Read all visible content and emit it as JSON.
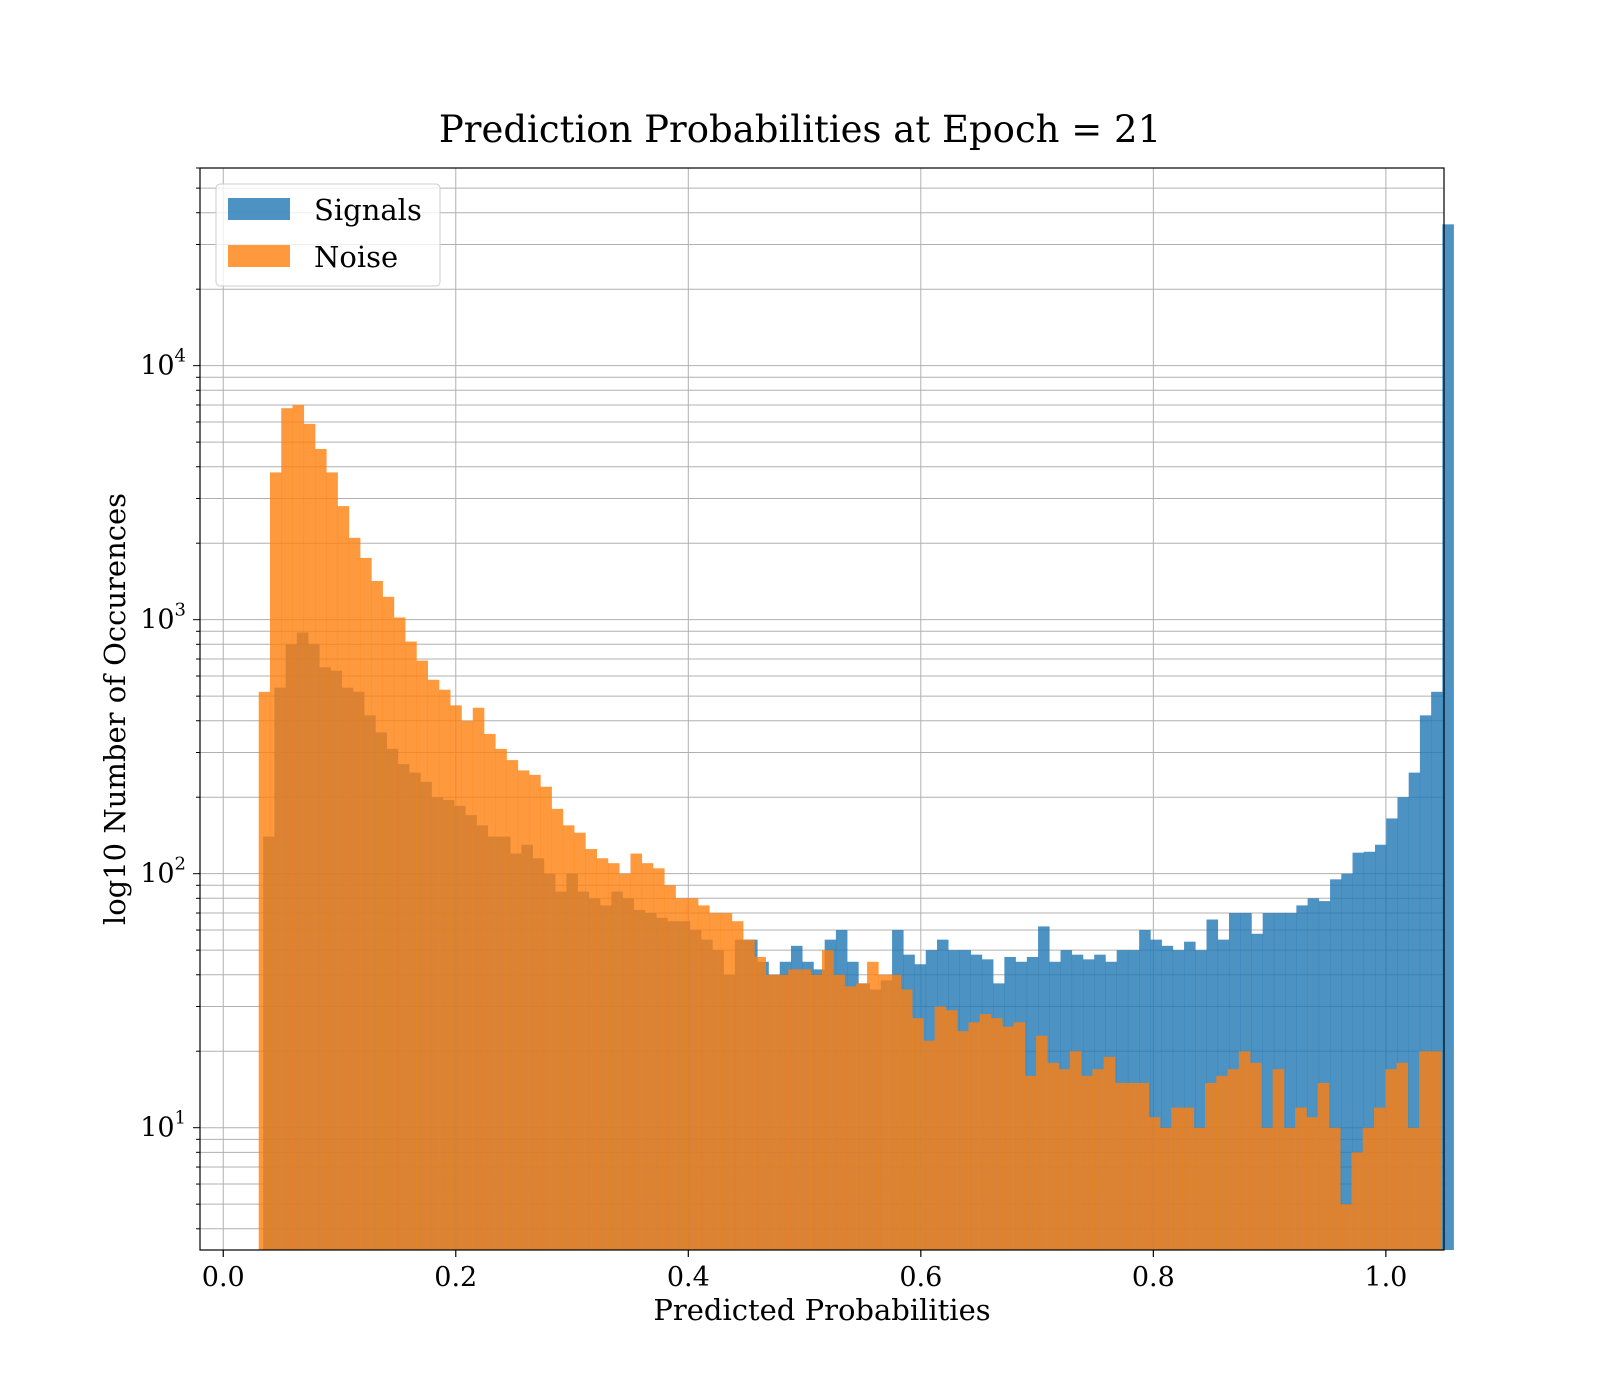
{
  "chart_data": {
    "type": "bar",
    "title": "Prediction Probabilities at Epoch = 21",
    "xlabel": "Predicted Probabilities",
    "ylabel": "log10 Number of Occurences",
    "y_scale": "log",
    "xlim": [
      -0.02,
      1.05
    ],
    "ylim": [
      3.3,
      60000
    ],
    "grid": true,
    "legend_position": "top-left",
    "x_ticks": [
      "0.0",
      "0.2",
      "0.4",
      "0.6",
      "0.8",
      "1.0"
    ],
    "y_ticks": [
      {
        "value": 10,
        "base": "10",
        "exp": "1"
      },
      {
        "value": 100,
        "base": "10",
        "exp": "2"
      },
      {
        "value": 1000,
        "base": "10",
        "exp": "3"
      },
      {
        "value": 10000,
        "base": "10",
        "exp": "4"
      }
    ],
    "series": [
      {
        "name": "Signals",
        "color": "#1f77b4",
        "bin_start": 0.0343,
        "bin_width": 0.00966,
        "values": [
          140,
          540,
          800,
          890,
          800,
          650,
          630,
          540,
          520,
          420,
          360,
          310,
          270,
          250,
          230,
          200,
          195,
          185,
          170,
          155,
          140,
          140,
          120,
          130,
          115,
          100,
          85,
          100,
          85,
          80,
          75,
          85,
          80,
          72,
          70,
          67,
          65,
          65,
          60,
          55,
          50,
          40,
          55,
          55,
          45,
          40,
          45,
          52,
          45,
          42,
          55,
          60,
          45,
          37,
          35,
          38,
          60,
          48,
          44,
          50,
          55,
          50,
          50,
          48,
          46,
          37,
          47,
          45,
          47,
          62,
          45,
          50,
          48,
          46,
          48,
          45,
          50,
          50,
          60,
          55,
          52,
          50,
          54,
          50,
          66,
          55,
          70,
          70,
          58,
          70,
          70,
          70,
          75,
          80,
          78,
          95,
          100,
          121,
          122,
          130,
          165,
          200,
          250,
          420,
          520,
          36000
        ],
        "fill_opacity": 0.8
      },
      {
        "name": "Noise",
        "color": "#ff7f0e",
        "bin_start": 0.0305,
        "bin_width": 0.00969,
        "values": [
          520,
          3800,
          6800,
          7000,
          5900,
          4700,
          3800,
          2800,
          2100,
          1750,
          1420,
          1230,
          1020,
          820,
          690,
          580,
          530,
          460,
          400,
          450,
          355,
          310,
          280,
          255,
          245,
          220,
          180,
          155,
          145,
          125,
          115,
          110,
          100,
          120,
          110,
          105,
          90,
          80,
          80,
          75,
          70,
          70,
          65,
          55,
          47,
          40,
          40,
          42,
          42,
          40,
          50,
          40,
          36,
          37,
          45,
          40,
          40,
          35,
          27,
          22,
          30,
          29,
          24,
          26,
          28,
          27,
          25,
          26,
          16,
          23,
          18,
          17,
          20,
          16,
          17,
          19,
          15,
          15,
          15,
          11,
          10,
          12,
          12,
          10,
          15,
          16,
          17,
          20,
          18,
          10,
          17,
          10,
          12,
          11,
          15,
          10,
          5,
          8,
          10,
          12,
          17,
          18,
          10,
          20,
          20
        ],
        "fill_opacity": 0.8
      }
    ]
  }
}
